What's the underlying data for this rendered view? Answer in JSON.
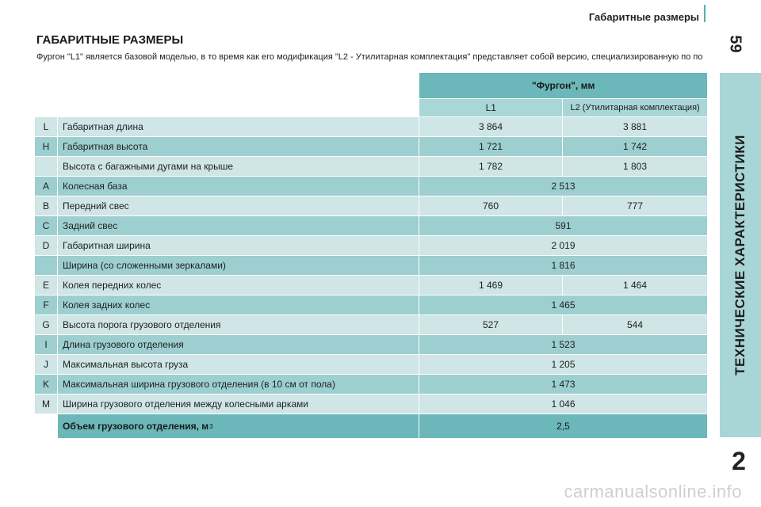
{
  "running_head": "Габаритные размеры",
  "page_number": "59",
  "side_tab": "ТЕХНИЧЕСКИЕ ХАРАКТЕРИСТИКИ",
  "chapter_number": "2",
  "title": "ГАБАРИТНЫЕ РАЗМЕРЫ",
  "subtitle": "Фургон \"L1\" является базовой моделью, в то время как его модификация \"L2 - Утилитарная комплектация\" представляет собой версию, специализированную по потребности.",
  "table": {
    "header": "\"Фургон\", мм",
    "col1": "L1",
    "col2": "L2 (Утилитарная комплектация)",
    "rows": [
      {
        "letter": "L",
        "desc": "Габаритная длина",
        "v1": "3 864",
        "v2": "3 881"
      },
      {
        "letter": "H",
        "desc": "Габаритная высота",
        "v1": "1 721",
        "v2": "1 742"
      },
      {
        "letter": "",
        "desc": "Высота с багажными дугами на крыше",
        "v1": "1 782",
        "v2": "1 803"
      },
      {
        "letter": "A",
        "desc": "Колесная база",
        "span": "2 513"
      },
      {
        "letter": "B",
        "desc": "Передний свес",
        "v1": "760",
        "v2": "777"
      },
      {
        "letter": "C",
        "desc": "Задний свес",
        "span": "591"
      },
      {
        "letter": "D",
        "desc": "Габаритная ширина",
        "span": "2 019"
      },
      {
        "letter": "",
        "desc": "Ширина (со сложенными зеркалами)",
        "span": "1 816"
      },
      {
        "letter": "E",
        "desc": "Колея передних колес",
        "v1": "1 469",
        "v2": "1 464"
      },
      {
        "letter": "F",
        "desc": "Колея задних колес",
        "span": "1 465"
      },
      {
        "letter": "G",
        "desc": "Высота порога грузового отделения",
        "v1": "527",
        "v2": "544"
      },
      {
        "letter": "I",
        "desc": "Длина грузового отделения",
        "span": "1 523"
      },
      {
        "letter": "J",
        "desc": "Максимальная высота груза",
        "span": "1 205"
      },
      {
        "letter": "K",
        "desc": "Максимальная ширина грузового отделения (в 10 см от пола)",
        "span": "1 473"
      },
      {
        "letter": "M",
        "desc": "Ширина грузового отделения между колесными арками",
        "span": "1 046"
      }
    ],
    "total_label": "Объем грузового отделения, м",
    "total_sup": "3",
    "total_value": "2,5"
  },
  "watermark": "carmanualsonline.info"
}
